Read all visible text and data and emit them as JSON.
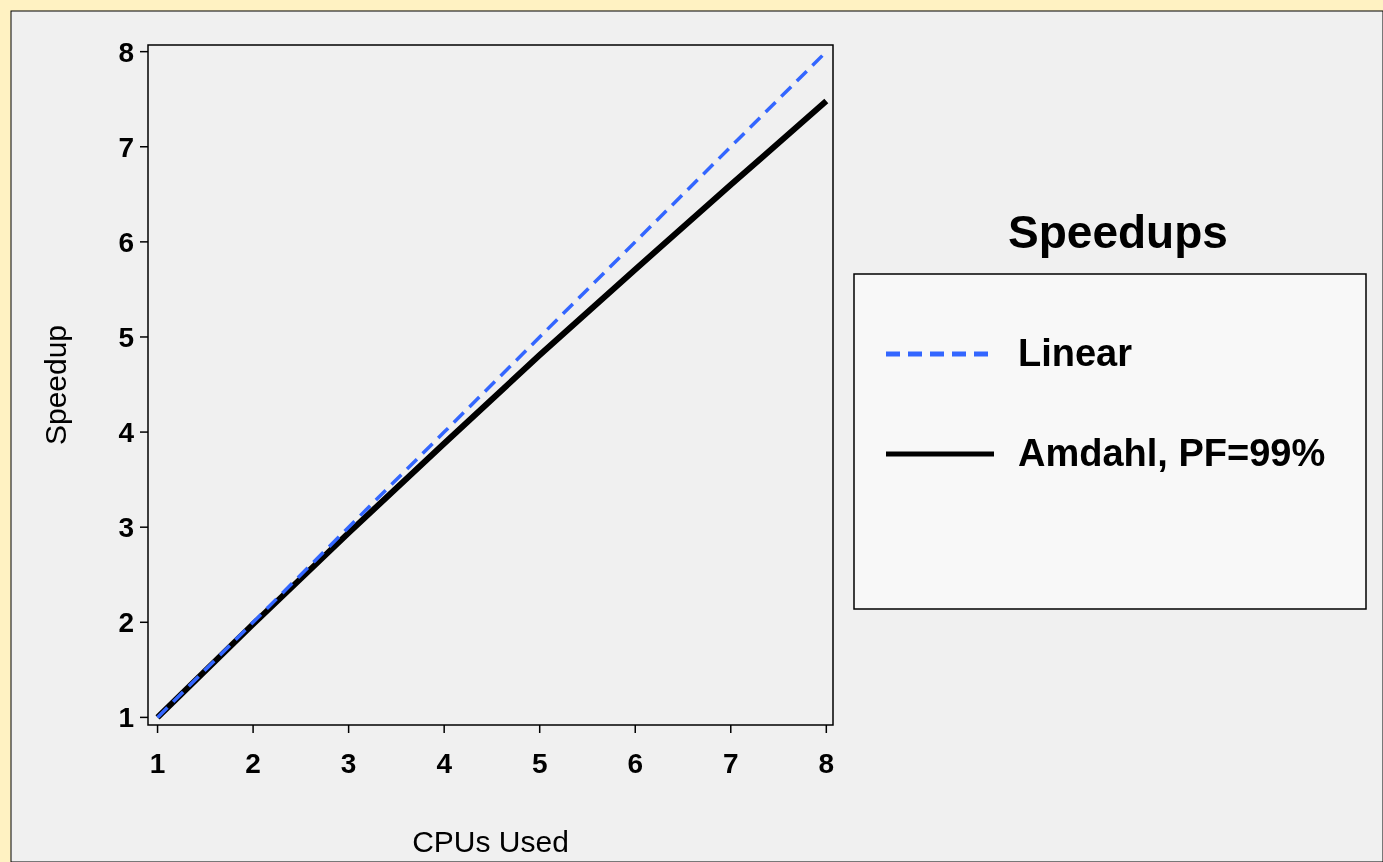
{
  "chart_data": {
    "type": "line",
    "xlabel": "CPUs Used",
    "ylabel": "Speedup",
    "legend_title": "Speedups",
    "x": [
      1,
      2,
      3,
      4,
      5,
      6,
      7,
      8
    ],
    "series": [
      {
        "name": "Linear",
        "color": "#3366ff",
        "line_style": "dashed",
        "values": [
          1,
          2,
          3,
          4,
          5,
          6,
          7,
          8
        ]
      },
      {
        "name": "Amdahl, PF=99%",
        "color": "#000000",
        "line_style": "solid",
        "values": [
          1,
          1.98,
          2.94,
          3.88,
          4.81,
          5.71,
          6.6,
          7.48
        ]
      }
    ],
    "xlim": [
      0.9,
      8.07
    ],
    "ylim": [
      0.92,
      8.07
    ],
    "xticks": [
      1,
      2,
      3,
      4,
      5,
      6,
      7,
      8
    ],
    "yticks": [
      1,
      2,
      3,
      4,
      5,
      6,
      7,
      8
    ],
    "grid": false,
    "legend": "right"
  }
}
